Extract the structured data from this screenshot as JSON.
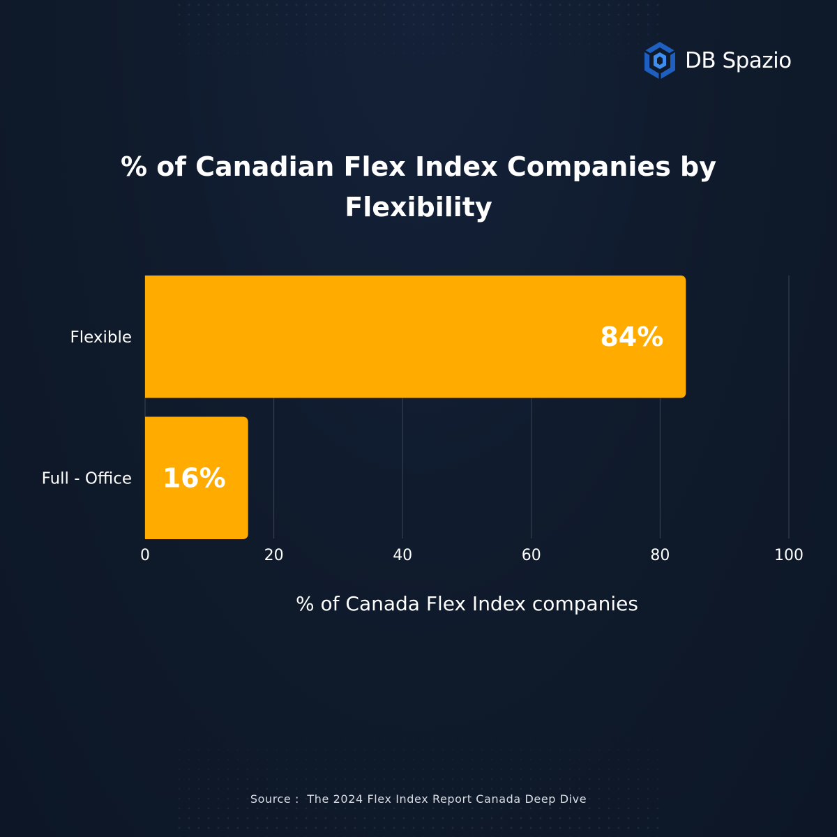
{
  "brand": {
    "name": "DB Spazio",
    "icon": "db-spazio-logo-icon"
  },
  "colors": {
    "background": "#0f1a2b",
    "bar": "#FFAB00",
    "text": "#ffffff",
    "grid": "#3a4556",
    "accent": "#2f7de1"
  },
  "source": "Source :  The 2024 Flex Index Report Canada Deep Dive",
  "chart_data": {
    "type": "bar",
    "orientation": "horizontal",
    "title": "% of Canadian Flex Index Companies by Flexibility",
    "title_lines": [
      "% of Canadian Flex Index Companies by",
      "Flexibility"
    ],
    "categories": [
      "Flexible",
      "Full - Office"
    ],
    "values": [
      84,
      16
    ],
    "data_labels": [
      "84%",
      "16%"
    ],
    "xlabel": "% of Canada Flex Index companies",
    "ylabel": "",
    "xlim": [
      0,
      100
    ],
    "xticks": [
      0,
      20,
      40,
      60,
      80,
      100
    ],
    "grid": "vertical",
    "legend": "none"
  }
}
